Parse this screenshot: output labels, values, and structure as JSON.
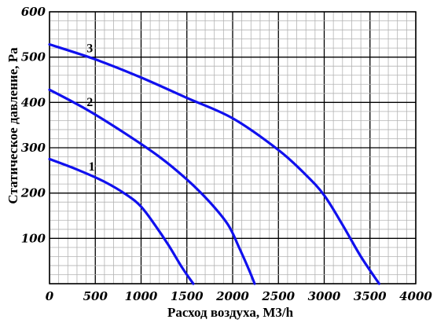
{
  "chart_data": {
    "type": "line",
    "xlabel": "Расход воздуха, М3/h",
    "ylabel": "Статическое давление, Pa",
    "xlim": [
      0,
      4000
    ],
    "ylim": [
      0,
      600
    ],
    "x_ticks": [
      "0",
      "500",
      "1000",
      "1500",
      "2000",
      "2500",
      "3000",
      "3500",
      "4000"
    ],
    "y_ticks": [
      "100",
      "200",
      "300",
      "400",
      "500",
      "600"
    ],
    "grid": true,
    "line_color": "#1010ee",
    "series": [
      {
        "name": "1",
        "points": [
          [
            0,
            275
          ],
          [
            300,
            252
          ],
          [
            600,
            225
          ],
          [
            850,
            195
          ],
          [
            1000,
            170
          ],
          [
            1150,
            130
          ],
          [
            1300,
            85
          ],
          [
            1450,
            35
          ],
          [
            1570,
            0
          ]
        ]
      },
      {
        "name": "2",
        "points": [
          [
            0,
            428
          ],
          [
            400,
            385
          ],
          [
            800,
            335
          ],
          [
            1200,
            280
          ],
          [
            1500,
            230
          ],
          [
            1750,
            180
          ],
          [
            1950,
            130
          ],
          [
            2070,
            80
          ],
          [
            2180,
            30
          ],
          [
            2240,
            0
          ]
        ]
      },
      {
        "name": "3",
        "points": [
          [
            0,
            528
          ],
          [
            500,
            495
          ],
          [
            1000,
            455
          ],
          [
            1500,
            410
          ],
          [
            2000,
            365
          ],
          [
            2500,
            295
          ],
          [
            2800,
            240
          ],
          [
            3000,
            195
          ],
          [
            3200,
            130
          ],
          [
            3400,
            60
          ],
          [
            3600,
            0
          ]
        ]
      }
    ]
  }
}
